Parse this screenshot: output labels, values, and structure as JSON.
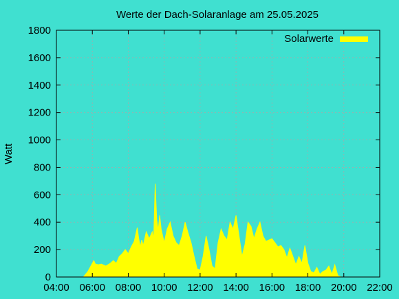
{
  "chart_data": {
    "type": "area",
    "title": "Werte der Dach-Solaranlage am 25.05.2025",
    "ylabel": "Watt",
    "xlabel": "",
    "xlim": [
      "04:00",
      "22:00"
    ],
    "ylim": [
      0,
      1800
    ],
    "grid": true,
    "legend_position": "top-right",
    "x_ticks": [
      "04:00",
      "06:00",
      "08:00",
      "10:00",
      "12:00",
      "14:00",
      "16:00",
      "18:00",
      "20:00",
      "22:00"
    ],
    "y_ticks": [
      "0",
      "200",
      "400",
      "600",
      "800",
      "1000",
      "1200",
      "1400",
      "1600",
      "1800"
    ],
    "colors": {
      "fill": "#ffff00",
      "background": "#40e0d0",
      "grid": "#a8a8a8"
    },
    "series": [
      {
        "name": "Solarwerte",
        "x": [
          "05:30",
          "05:45",
          "06:00",
          "06:05",
          "06:10",
          "06:20",
          "06:30",
          "06:45",
          "07:00",
          "07:10",
          "07:20",
          "07:30",
          "07:40",
          "07:50",
          "08:00",
          "08:10",
          "08:20",
          "08:30",
          "08:35",
          "08:40",
          "08:45",
          "08:50",
          "09:00",
          "09:10",
          "09:20",
          "09:25",
          "09:30",
          "09:35",
          "09:40",
          "09:45",
          "09:50",
          "09:55",
          "10:00",
          "10:10",
          "10:20",
          "10:30",
          "10:40",
          "10:50",
          "11:00",
          "11:10",
          "11:20",
          "11:30",
          "11:40",
          "11:50",
          "12:00",
          "12:10",
          "12:20",
          "12:30",
          "12:40",
          "12:50",
          "13:00",
          "13:10",
          "13:20",
          "13:30",
          "13:40",
          "13:50",
          "14:00",
          "14:10",
          "14:20",
          "14:30",
          "14:40",
          "14:50",
          "15:00",
          "15:10",
          "15:20",
          "15:30",
          "15:40",
          "15:50",
          "16:00",
          "16:10",
          "16:20",
          "16:30",
          "16:40",
          "16:50",
          "17:00",
          "17:10",
          "17:20",
          "17:30",
          "17:40",
          "17:50",
          "18:00",
          "18:10",
          "18:20",
          "18:30",
          "18:40",
          "18:50",
          "19:00",
          "19:10",
          "19:20",
          "19:30",
          "19:40",
          "19:50",
          "20:00",
          "20:10",
          "20:20",
          "20:30",
          "20:40",
          "20:50"
        ],
        "values": [
          0,
          40,
          100,
          120,
          95,
          90,
          95,
          80,
          100,
          120,
          100,
          150,
          170,
          200,
          170,
          220,
          260,
          360,
          280,
          220,
          270,
          230,
          330,
          280,
          330,
          280,
          680,
          420,
          340,
          450,
          350,
          300,
          250,
          350,
          400,
          300,
          250,
          230,
          300,
          400,
          320,
          250,
          150,
          60,
          50,
          150,
          300,
          200,
          80,
          60,
          250,
          350,
          300,
          270,
          400,
          350,
          450,
          300,
          150,
          240,
          400,
          370,
          280,
          350,
          400,
          300,
          260,
          270,
          280,
          250,
          220,
          230,
          200,
          140,
          210,
          150,
          90,
          150,
          100,
          230,
          100,
          40,
          30,
          70,
          20,
          40,
          50,
          80,
          20,
          90,
          10,
          0,
          0,
          0,
          0,
          0,
          0,
          0
        ]
      }
    ]
  }
}
